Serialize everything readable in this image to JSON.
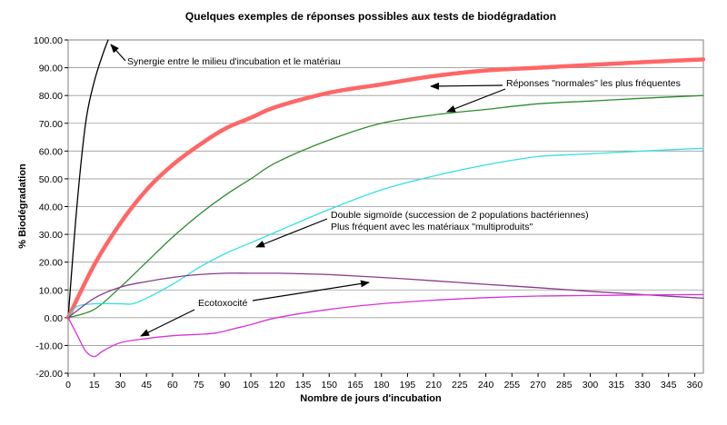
{
  "chart_data": {
    "type": "line",
    "title": "Quelques exemples de réponses possibles aux tests de biodégradation",
    "xlabel": "Nombre de jours d'incubation",
    "ylabel": "% Biodégradation",
    "xlim": [
      0,
      365
    ],
    "ylim": [
      -20,
      100
    ],
    "x_ticks": [
      "0",
      "15",
      "30",
      "45",
      "60",
      "75",
      "90",
      "105",
      "120",
      "135",
      "150",
      "165",
      "180",
      "195",
      "210",
      "225",
      "240",
      "255",
      "270",
      "285",
      "300",
      "315",
      "330",
      "345",
      "360"
    ],
    "y_ticks": [
      "-20.00",
      "-10.00",
      "0.00",
      "10.00",
      "20.00",
      "30.00",
      "40.00",
      "50.00",
      "60.00",
      "70.00",
      "80.00",
      "90.00",
      "100.00"
    ],
    "grid": "horizontal",
    "series": [
      {
        "color": "#000000",
        "x": [
          0,
          5,
          10,
          15,
          20,
          23
        ],
        "y": [
          0,
          40,
          70,
          85,
          95,
          100
        ]
      },
      {
        "color": "#ff6666",
        "x": [
          0,
          15,
          30,
          45,
          60,
          75,
          90,
          105,
          120,
          150,
          180,
          210,
          240,
          270,
          300,
          330,
          365
        ],
        "y": [
          0,
          19,
          34,
          46,
          55,
          62,
          68,
          72,
          76,
          81,
          84,
          87,
          89,
          90,
          91,
          92,
          93
        ]
      },
      {
        "color": "#2e8b2e",
        "x": [
          0,
          15,
          30,
          45,
          60,
          75,
          90,
          105,
          120,
          150,
          180,
          210,
          240,
          270,
          300,
          330,
          365
        ],
        "y": [
          0,
          3,
          11,
          20,
          29,
          37,
          44,
          50,
          56,
          64,
          70,
          73,
          75,
          77,
          78,
          79,
          80
        ]
      },
      {
        "color": "#33e0e0",
        "x": [
          0,
          5,
          15,
          30,
          37,
          45,
          60,
          75,
          90,
          105,
          120,
          150,
          180,
          210,
          240,
          270,
          300,
          330,
          365
        ],
        "y": [
          0,
          4,
          5,
          5,
          5,
          7,
          12,
          18,
          23,
          27,
          31,
          39,
          46,
          51,
          55,
          58,
          59,
          60,
          61
        ]
      },
      {
        "color": "#8b3a8b",
        "x": [
          0,
          15,
          30,
          45,
          60,
          75,
          90,
          105,
          120,
          135,
          150,
          180,
          210,
          240,
          270,
          300,
          330,
          365
        ],
        "y": [
          0,
          7,
          11,
          13,
          14.5,
          15.5,
          16,
          16,
          16,
          15.8,
          15.5,
          14.5,
          13.3,
          12,
          10.8,
          9.5,
          8.3,
          7
        ]
      },
      {
        "color": "#d633d6",
        "x": [
          0,
          5,
          10,
          15,
          20,
          30,
          45,
          60,
          75,
          85,
          95,
          105,
          120,
          150,
          180,
          210,
          240,
          270,
          300,
          330,
          365
        ],
        "y": [
          0,
          -6,
          -12,
          -14,
          -12,
          -9,
          -7.5,
          -6.5,
          -6,
          -5.5,
          -4,
          -2.5,
          0,
          3,
          5,
          6.3,
          7.2,
          7.8,
          8,
          8.2,
          8.3
        ]
      }
    ],
    "annotations": {
      "synergie": "Synergie entre le milieu d'incubation et le matériau",
      "normales": "Réponses \"normales\" les plus fréquentes",
      "double_1": "Double sigmoïde (succession de 2 populations bactériennes)",
      "double_2": "Plus fréquent avec les matériaux \"multiproduits\"",
      "ecotox": "Ecotoxocité"
    }
  }
}
